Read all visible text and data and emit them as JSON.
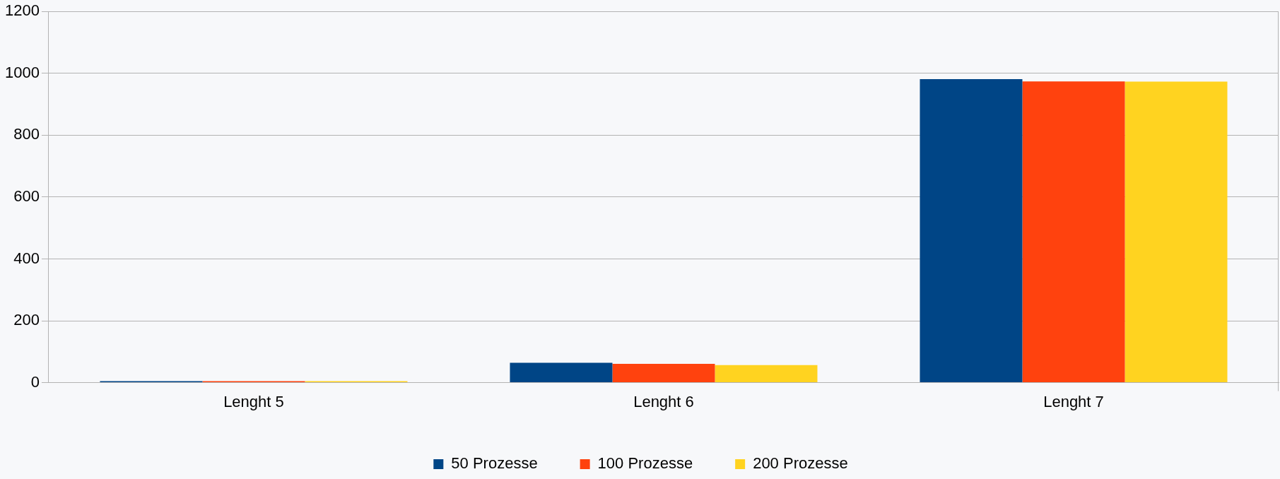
{
  "chart_data": {
    "type": "bar",
    "categories": [
      "Lenght 5",
      "Lenght 6",
      "Lenght 7"
    ],
    "series": [
      {
        "name": "50 Prozesse",
        "color": "#004586",
        "values": [
          3,
          64,
          981
        ]
      },
      {
        "name": "100 Prozesse",
        "color": "#ff420e",
        "values": [
          1,
          61,
          974
        ]
      },
      {
        "name": "200 Prozesse",
        "color": "#ffd320",
        "values": [
          1,
          57,
          973
        ]
      }
    ],
    "ylim": [
      0,
      1200
    ],
    "yticks": [
      0,
      200,
      400,
      600,
      800,
      1000,
      1200
    ],
    "grid": "y",
    "legend": "bottom"
  }
}
